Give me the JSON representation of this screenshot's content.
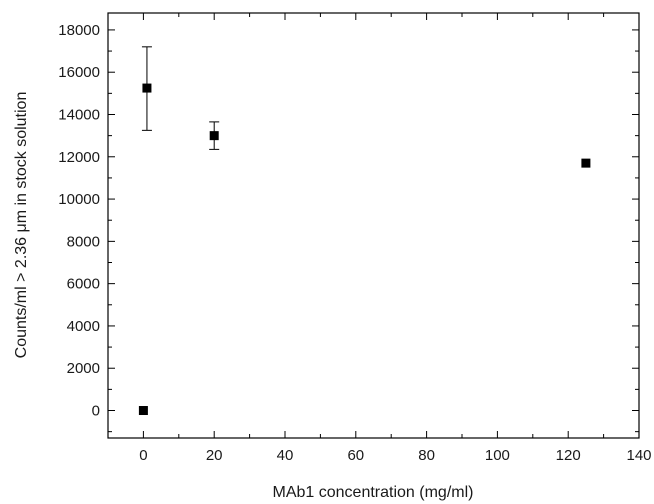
{
  "chart_data": {
    "type": "scatter",
    "xlabel": "MAb1 concentration (mg/ml)",
    "ylabel": "Counts/ml > 2.36 μm in stock solution",
    "xlim": [
      -10,
      140
    ],
    "ylim": [
      -1300,
      18800
    ],
    "x_ticks": [
      0,
      20,
      40,
      60,
      80,
      100,
      120,
      140
    ],
    "y_ticks": [
      0,
      2000,
      4000,
      6000,
      8000,
      10000,
      12000,
      14000,
      16000,
      18000
    ],
    "grid": false,
    "legend": "none",
    "marker": "square",
    "color": "#000000",
    "points": [
      {
        "x": 0,
        "y": 0
      },
      {
        "x": 1,
        "y": 15250,
        "yerr_low": 13250,
        "yerr_high": 17200
      },
      {
        "x": 20,
        "y": 13000,
        "yerr_low": 12350,
        "yerr_high": 13650
      },
      {
        "x": 125,
        "y": 11700
      }
    ]
  }
}
